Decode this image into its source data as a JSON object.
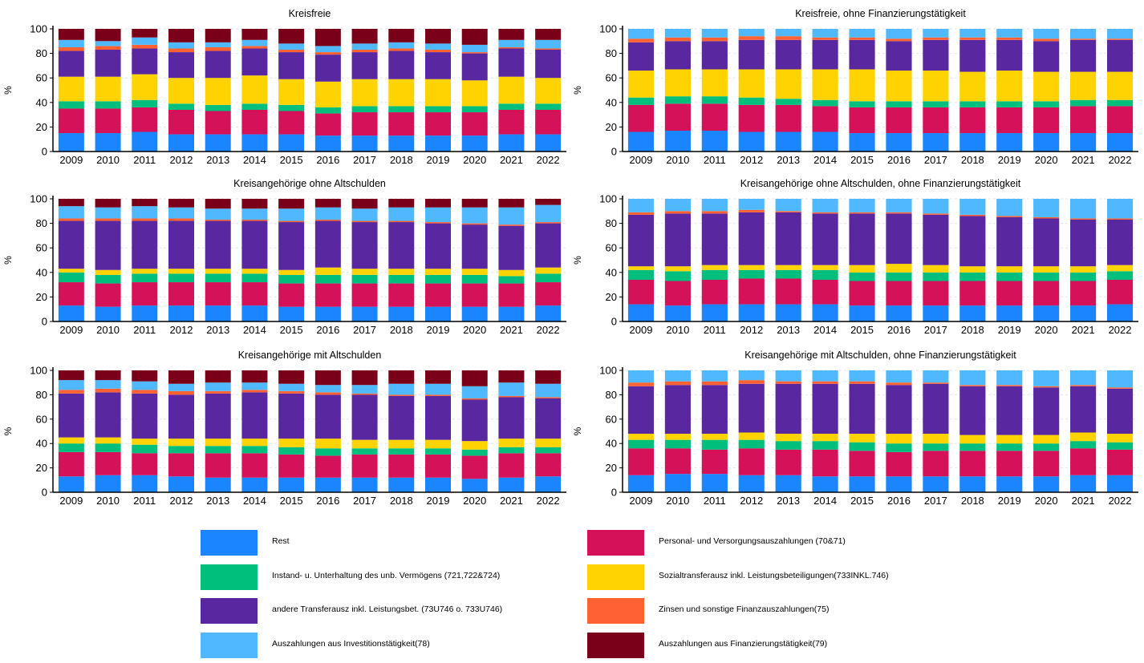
{
  "chart_data": [
    {
      "type": "bar",
      "title": "Kreisfreie",
      "ylabel": "%",
      "ylim": [
        0,
        100
      ],
      "yticks": [
        0,
        20,
        40,
        60,
        80,
        100
      ],
      "categories": [
        "2009",
        "2010",
        "2011",
        "2012",
        "2013",
        "2014",
        "2015",
        "2016",
        "2017",
        "2018",
        "2019",
        "2020",
        "2021",
        "2022"
      ],
      "series": [
        {
          "name": "Rest",
          "values": [
            15,
            15,
            16,
            14,
            14,
            14,
            14,
            13,
            13,
            13,
            13,
            13,
            14,
            14
          ]
        },
        {
          "name": "Personal- und Versorgungsauszahlungen (70&71)",
          "values": [
            20,
            20,
            20,
            20,
            19,
            20,
            19,
            18,
            19,
            19,
            19,
            19,
            20,
            20
          ]
        },
        {
          "name": "Instand- u. Unterhaltung des unb. Vermögens (721,722&724)",
          "values": [
            6,
            6,
            6,
            5,
            5,
            5,
            5,
            5,
            5,
            5,
            5,
            5,
            5,
            5
          ]
        },
        {
          "name": "Sozialtransferausz inkl. Leistungsbeteiligungen(733INKL.746)",
          "values": [
            20,
            20,
            21,
            21,
            22,
            23,
            21,
            21,
            22,
            22,
            22,
            21,
            22,
            21
          ]
        },
        {
          "name": "andere Transferausz inkl. Leistungsbet. (73U746 o. 733U746)",
          "values": [
            21,
            22,
            21,
            21,
            22,
            22,
            22,
            22,
            22,
            23,
            22,
            22,
            23,
            23
          ]
        },
        {
          "name": "Zinsen und sonstige Finanzauszahlungen(75)",
          "values": [
            3,
            3,
            3,
            3,
            3,
            2,
            2,
            2,
            2,
            2,
            2,
            1,
            1,
            1
          ]
        },
        {
          "name": "Auszahlungen aus Investitionstätigkeit(78)",
          "values": [
            6,
            4,
            6,
            5,
            4,
            5,
            5,
            5,
            5,
            5,
            5,
            6,
            6,
            7
          ]
        },
        {
          "name": "Auszahlungen aus Finanzierungstätigkeit(79)",
          "values": [
            9,
            10,
            7,
            11,
            11,
            9,
            12,
            14,
            12,
            11,
            12,
            13,
            9,
            9
          ]
        }
      ]
    },
    {
      "type": "bar",
      "title": "Kreisfreie, ohne Finanzierungstätigkeit",
      "ylabel": "%",
      "ylim": [
        0,
        100
      ],
      "yticks": [
        0,
        20,
        40,
        60,
        80,
        100
      ],
      "categories": [
        "2009",
        "2010",
        "2011",
        "2012",
        "2013",
        "2014",
        "2015",
        "2016",
        "2017",
        "2018",
        "2019",
        "2020",
        "2021",
        "2022"
      ],
      "series": [
        {
          "name": "Rest",
          "values": [
            16,
            17,
            17,
            16,
            16,
            16,
            15,
            15,
            15,
            15,
            15,
            15,
            15,
            15
          ]
        },
        {
          "name": "Personal- und Versorgungsauszahlungen (70&71)",
          "values": [
            22,
            22,
            22,
            22,
            22,
            21,
            21,
            21,
            21,
            21,
            21,
            21,
            22,
            22
          ]
        },
        {
          "name": "Instand- u. Unterhaltung des unb. Vermögens (721,722&724)",
          "values": [
            6,
            6,
            6,
            6,
            5,
            5,
            5,
            5,
            5,
            5,
            5,
            5,
            5,
            5
          ]
        },
        {
          "name": "Sozialtransferausz inkl. Leistungsbeteiligungen(733INKL.746)",
          "values": [
            22,
            22,
            22,
            23,
            24,
            25,
            26,
            25,
            25,
            24,
            25,
            24,
            23,
            23
          ]
        },
        {
          "name": "andere Transferausz inkl. Leistungsbet. (73U746 o. 733U746)",
          "values": [
            23,
            23,
            23,
            24,
            24,
            24,
            24,
            24,
            25,
            26,
            25,
            25,
            26,
            26
          ]
        },
        {
          "name": "Zinsen und sonstige Finanzauszahlungen(75)",
          "values": [
            3,
            3,
            3,
            3,
            3,
            2,
            2,
            2,
            2,
            2,
            2,
            2,
            1,
            1
          ]
        },
        {
          "name": "Auszahlungen aus Investitionstätigkeit(78)",
          "values": [
            8,
            7,
            7,
            6,
            6,
            7,
            7,
            8,
            7,
            7,
            7,
            8,
            8,
            8
          ]
        }
      ]
    },
    {
      "type": "bar",
      "title": "Kreisangehörige ohne Altschulden",
      "ylabel": "%",
      "ylim": [
        0,
        100
      ],
      "yticks": [
        0,
        20,
        40,
        60,
        80,
        100
      ],
      "categories": [
        "2009",
        "2010",
        "2011",
        "2012",
        "2013",
        "2014",
        "2015",
        "2016",
        "2017",
        "2018",
        "2019",
        "2020",
        "2021",
        "2022"
      ],
      "series": [
        {
          "name": "Rest",
          "values": [
            13,
            12,
            13,
            13,
            13,
            13,
            12,
            12,
            12,
            12,
            12,
            12,
            12,
            13
          ]
        },
        {
          "name": "Personal- und Versorgungsauszahlungen (70&71)",
          "values": [
            19,
            19,
            19,
            19,
            19,
            19,
            19,
            19,
            19,
            19,
            19,
            19,
            19,
            19
          ]
        },
        {
          "name": "Instand- u. Unterhaltung des unb. Vermögens (721,722&724)",
          "values": [
            8,
            7,
            7,
            7,
            7,
            7,
            7,
            7,
            7,
            7,
            7,
            7,
            6,
            7
          ]
        },
        {
          "name": "Sozialtransferausz inkl. Leistungsbeteiligungen(733INKL.746)",
          "values": [
            3,
            4,
            4,
            4,
            4,
            4,
            4,
            6,
            5,
            5,
            5,
            5,
            5,
            5
          ]
        },
        {
          "name": "andere Transferausz inkl. Leistungsbet. (73U746 o. 733U746)",
          "values": [
            39,
            40,
            39,
            39,
            39,
            39,
            39,
            38,
            38,
            38,
            37,
            36,
            36,
            36
          ]
        },
        {
          "name": "Zinsen und sonstige Finanzauszahlungen(75)",
          "values": [
            2,
            2,
            2,
            2,
            1,
            1,
            1,
            1,
            1,
            1,
            1,
            1,
            1,
            1
          ]
        },
        {
          "name": "Auszahlungen aus Investitionstätigkeit(78)",
          "values": [
            10,
            9,
            10,
            9,
            9,
            9,
            10,
            10,
            10,
            11,
            12,
            13,
            14,
            14
          ]
        },
        {
          "name": "Auszahlungen aus Finanzierungstätigkeit(79)",
          "values": [
            6,
            7,
            6,
            7,
            8,
            8,
            8,
            7,
            8,
            7,
            7,
            7,
            7,
            5
          ]
        }
      ]
    },
    {
      "type": "bar",
      "title": "Kreisangehörige ohne Altschulden, ohne Finanzierungstätigkeit",
      "ylabel": "%",
      "ylim": [
        0,
        100
      ],
      "yticks": [
        0,
        20,
        40,
        60,
        80,
        100
      ],
      "categories": [
        "2009",
        "2010",
        "2011",
        "2012",
        "2013",
        "2014",
        "2015",
        "2016",
        "2017",
        "2018",
        "2019",
        "2020",
        "2021",
        "2022"
      ],
      "series": [
        {
          "name": "Rest",
          "values": [
            14,
            13,
            14,
            14,
            14,
            14,
            13,
            13,
            13,
            13,
            13,
            13,
            13,
            14
          ]
        },
        {
          "name": "Personal- und Versorgungsauszahlungen (70&71)",
          "values": [
            20,
            20,
            20,
            21,
            21,
            20,
            20,
            20,
            20,
            20,
            20,
            20,
            20,
            20
          ]
        },
        {
          "name": "Instand- u. Unterhaltung des unb. Vermögens (721,722&724)",
          "values": [
            8,
            8,
            8,
            7,
            7,
            8,
            7,
            7,
            7,
            7,
            7,
            7,
            7,
            7
          ]
        },
        {
          "name": "Sozialtransferausz inkl. Leistungsbeteiligungen(733INKL.746)",
          "values": [
            3,
            4,
            4,
            4,
            4,
            4,
            6,
            7,
            6,
            5,
            5,
            5,
            5,
            5
          ]
        },
        {
          "name": "andere Transferausz inkl. Leistungsbet. (73U746 o. 733U746)",
          "values": [
            42,
            43,
            42,
            43,
            43,
            42,
            42,
            41,
            41,
            41,
            40,
            39,
            38,
            37
          ]
        },
        {
          "name": "Zinsen und sonstige Finanzauszahlungen(75)",
          "values": [
            2,
            2,
            2,
            2,
            1,
            1,
            1,
            1,
            1,
            1,
            1,
            1,
            1,
            1
          ]
        },
        {
          "name": "Auszahlungen aus Investitionstätigkeit(78)",
          "values": [
            11,
            10,
            10,
            9,
            10,
            11,
            11,
            11,
            12,
            13,
            14,
            15,
            16,
            16
          ]
        }
      ]
    },
    {
      "type": "bar",
      "title": "Kreisangehörige mit Altschulden",
      "ylabel": "%",
      "ylim": [
        0,
        100
      ],
      "yticks": [
        0,
        20,
        40,
        60,
        80,
        100
      ],
      "categories": [
        "2009",
        "2010",
        "2011",
        "2012",
        "2013",
        "2014",
        "2015",
        "2016",
        "2017",
        "2018",
        "2019",
        "2020",
        "2021",
        "2022"
      ],
      "series": [
        {
          "name": "Rest",
          "values": [
            13,
            14,
            14,
            13,
            12,
            12,
            12,
            12,
            12,
            12,
            12,
            11,
            12,
            13
          ]
        },
        {
          "name": "Personal- und Versorgungsauszahlungen (70&71)",
          "values": [
            20,
            19,
            18,
            19,
            20,
            20,
            19,
            18,
            19,
            19,
            19,
            19,
            20,
            19
          ]
        },
        {
          "name": "Instand- u. Unterhaltung des unb. Vermögens (721,722&724)",
          "values": [
            7,
            7,
            7,
            6,
            6,
            6,
            6,
            6,
            5,
            5,
            5,
            5,
            5,
            5
          ]
        },
        {
          "name": "Sozialtransferausz inkl. Leistungsbeteiligungen(733INKL.746)",
          "values": [
            5,
            5,
            5,
            6,
            6,
            6,
            7,
            8,
            7,
            7,
            7,
            7,
            7,
            7
          ]
        },
        {
          "name": "andere Transferausz inkl. Leistungsbet. (73U746 o. 733U746)",
          "values": [
            36,
            37,
            37,
            36,
            37,
            38,
            37,
            36,
            37,
            36,
            36,
            34,
            34,
            33
          ]
        },
        {
          "name": "Zinsen und sonstige Finanzauszahlungen(75)",
          "values": [
            3,
            3,
            3,
            3,
            2,
            2,
            2,
            2,
            1,
            1,
            1,
            1,
            1,
            1
          ]
        },
        {
          "name": "Auszahlungen aus Investitionstätigkeit(78)",
          "values": [
            8,
            7,
            7,
            6,
            7,
            6,
            6,
            6,
            7,
            9,
            9,
            10,
            11,
            11
          ]
        },
        {
          "name": "Auszahlungen aus Finanzierungstätigkeit(79)",
          "values": [
            8,
            8,
            9,
            11,
            10,
            10,
            11,
            12,
            12,
            11,
            11,
            13,
            10,
            11
          ]
        }
      ]
    },
    {
      "type": "bar",
      "title": "Kreisangehörige mit Altschulden, ohne Finanzierungstätigkeit",
      "ylabel": "%",
      "ylim": [
        0,
        100
      ],
      "yticks": [
        0,
        20,
        40,
        60,
        80,
        100
      ],
      "categories": [
        "2009",
        "2010",
        "2011",
        "2012",
        "2013",
        "2014",
        "2015",
        "2016",
        "2017",
        "2018",
        "2019",
        "2020",
        "2021",
        "2022"
      ],
      "series": [
        {
          "name": "Rest",
          "values": [
            14,
            15,
            15,
            14,
            14,
            13,
            13,
            13,
            13,
            13,
            13,
            13,
            14,
            14
          ]
        },
        {
          "name": "Personal- und Versorgungsauszahlungen (70&71)",
          "values": [
            22,
            21,
            20,
            22,
            21,
            22,
            21,
            20,
            21,
            21,
            21,
            21,
            22,
            21
          ]
        },
        {
          "name": "Instand- u. Unterhaltung des unb. Vermögens (721,722&724)",
          "values": [
            7,
            7,
            8,
            7,
            7,
            7,
            7,
            7,
            6,
            6,
            6,
            6,
            6,
            6
          ]
        },
        {
          "name": "Sozialtransferausz inkl. Leistungsbeteiligungen(733INKL.746)",
          "values": [
            5,
            5,
            5,
            6,
            6,
            6,
            7,
            8,
            8,
            7,
            7,
            7,
            7,
            7
          ]
        },
        {
          "name": "andere Transferausz inkl. Leistungsbet. (73U746 o. 733U746)",
          "values": [
            39,
            40,
            40,
            40,
            41,
            41,
            41,
            40,
            41,
            40,
            40,
            39,
            38,
            37
          ]
        },
        {
          "name": "Zinsen und sonstige Finanzauszahlungen(75)",
          "values": [
            3,
            3,
            3,
            3,
            2,
            2,
            2,
            2,
            1,
            1,
            1,
            1,
            1,
            1
          ]
        },
        {
          "name": "Auszahlungen aus Investitionstätigkeit(78)",
          "values": [
            10,
            9,
            9,
            8,
            9,
            9,
            9,
            10,
            10,
            12,
            12,
            13,
            12,
            14
          ]
        }
      ]
    }
  ],
  "legend": {
    "items": [
      {
        "label": "Rest",
        "color": "#1a85ff"
      },
      {
        "label": "Personal- und Versorgungsauszahlungen (70&71)",
        "color": "#d41159"
      },
      {
        "label": "Instand- u. Unterhaltung des unb. Vermögens (721,722&724)",
        "color": "#00bf7d"
      },
      {
        "label": "Sozialtransferausz inkl. Leistungsbeteiligungen(733INKL.746)",
        "color": "#ffd300"
      },
      {
        "label": "andere Transferausz inkl. Leistungsbet. (73U746 o. 733U746)",
        "color": "#5928a0"
      },
      {
        "label": "Zinsen und sonstige Finanzauszahlungen(75)",
        "color": "#ff6132"
      },
      {
        "label": "Auszahlungen aus Investitionstätigkeit(78)",
        "color": "#4fb8ff"
      },
      {
        "label": "Auszahlungen aus Finanzierungstätigkeit(79)",
        "color": "#7a0019"
      }
    ]
  }
}
